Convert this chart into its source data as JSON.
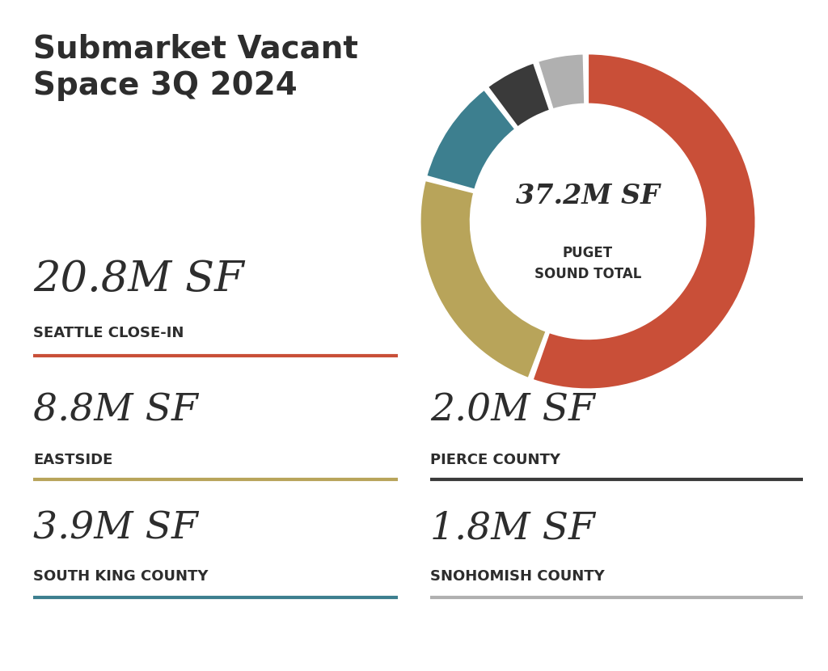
{
  "title": "Submarket Vacant\nSpace 3Q 2024",
  "title_color": "#2d2d2d",
  "background_color": "#ffffff",
  "donut_center_label1": "37.2M SF",
  "donut_center_label2": "PUGET\nSOUND TOTAL",
  "segments": [
    {
      "label": "20.8M SF",
      "sublabel": "SEATTLE CLOSE-IN",
      "value": 20.8,
      "color": "#c94f38",
      "line_color": "#c94f38"
    },
    {
      "label": "8.8M SF",
      "sublabel": "EASTSIDE",
      "value": 8.8,
      "color": "#b8a45a",
      "line_color": "#b8a45a"
    },
    {
      "label": "3.9M SF",
      "sublabel": "SOUTH KING COUNTY",
      "value": 3.9,
      "color": "#3d7f8f",
      "line_color": "#3d7f8f"
    },
    {
      "label": "2.0M SF",
      "sublabel": "PIERCE COUNTY",
      "value": 2.0,
      "color": "#3a3a3a",
      "line_color": "#3a3a3a"
    },
    {
      "label": "1.8M SF",
      "sublabel": "SNOHOMISH COUNTY",
      "value": 1.8,
      "color": "#b0b0b0",
      "line_color": "#b0b0b0"
    }
  ],
  "donut_colors": [
    "#c94f38",
    "#b8a45a",
    "#3d7f8f",
    "#3a3a3a",
    "#b0b0b0"
  ]
}
